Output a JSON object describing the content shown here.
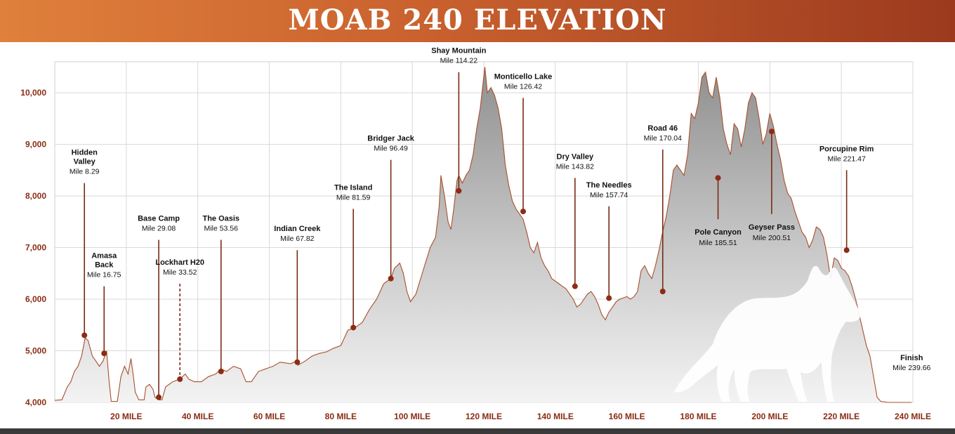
{
  "title": "MOAB 240 ELEVATION",
  "chart_data": {
    "type": "area",
    "title": "MOAB 240 ELEVATION",
    "xlim": [
      0,
      240
    ],
    "ylim": [
      4000,
      10600
    ],
    "grid": true,
    "x_ticks": [
      20,
      40,
      60,
      80,
      100,
      120,
      140,
      160,
      180,
      200,
      220,
      240
    ],
    "x_tick_labels": [
      "20 MILE",
      "40 MILE",
      "60 MILE",
      "80 MILE",
      "100 MILE",
      "120 MILE",
      "140 MILE",
      "160 MILE",
      "180 MILE",
      "200 MILE",
      "220 MILE",
      "240 MILE"
    ],
    "y_ticks": [
      4000,
      5000,
      6000,
      7000,
      8000,
      9000,
      10000
    ],
    "y_tick_labels": [
      "4,000",
      "5,000",
      "6,000",
      "7,000",
      "8,000",
      "9,000",
      "10,000"
    ],
    "series": [
      {
        "values": [
          [
            0,
            4040
          ],
          [
            2,
            4050
          ],
          [
            3.5,
            4300
          ],
          [
            4.5,
            4400
          ],
          [
            5.5,
            4600
          ],
          [
            6.5,
            4700
          ],
          [
            7.5,
            4900
          ],
          [
            8.5,
            5250
          ],
          [
            9.3,
            5200
          ],
          [
            10.5,
            4900
          ],
          [
            12.5,
            4700
          ],
          [
            13.5,
            4800
          ],
          [
            14.5,
            5000
          ],
          [
            15.2,
            4400
          ],
          [
            15.8,
            4020
          ],
          [
            17.5,
            4020
          ],
          [
            18.5,
            4500
          ],
          [
            19.5,
            4700
          ],
          [
            20.5,
            4550
          ],
          [
            21.3,
            4850
          ],
          [
            22,
            4500
          ],
          [
            22.5,
            4200
          ],
          [
            23.5,
            4050
          ],
          [
            25,
            4050
          ],
          [
            25.5,
            4300
          ],
          [
            26.5,
            4350
          ],
          [
            27.5,
            4250
          ],
          [
            28,
            4100
          ],
          [
            29,
            4050
          ],
          [
            30,
            4050
          ],
          [
            31,
            4300
          ],
          [
            33,
            4400
          ],
          [
            35,
            4450
          ],
          [
            36.5,
            4550
          ],
          [
            37.5,
            4450
          ],
          [
            39,
            4400
          ],
          [
            41,
            4400
          ],
          [
            43,
            4500
          ],
          [
            45,
            4550
          ],
          [
            46.5,
            4650
          ],
          [
            48,
            4600
          ],
          [
            50,
            4700
          ],
          [
            52,
            4650
          ],
          [
            53.5,
            4400
          ],
          [
            55,
            4400
          ],
          [
            57,
            4600
          ],
          [
            59,
            4650
          ],
          [
            61,
            4700
          ],
          [
            63,
            4780
          ],
          [
            66,
            4750
          ],
          [
            67.5,
            4800
          ],
          [
            68,
            4720
          ],
          [
            70,
            4800
          ],
          [
            72,
            4900
          ],
          [
            74,
            4950
          ],
          [
            76,
            4980
          ],
          [
            78,
            5050
          ],
          [
            80,
            5100
          ],
          [
            82,
            5400
          ],
          [
            84,
            5450
          ],
          [
            86,
            5550
          ],
          [
            88,
            5800
          ],
          [
            90,
            6000
          ],
          [
            92,
            6300
          ],
          [
            94,
            6400
          ],
          [
            95,
            6600
          ],
          [
            96.5,
            6700
          ],
          [
            97.5,
            6500
          ],
          [
            98.5,
            6150
          ],
          [
            99.5,
            5950
          ],
          [
            101,
            6100
          ],
          [
            103,
            6550
          ],
          [
            105,
            7000
          ],
          [
            106.5,
            7200
          ],
          [
            107.5,
            7800
          ],
          [
            108,
            8400
          ],
          [
            109,
            8000
          ],
          [
            110,
            7500
          ],
          [
            110.8,
            7350
          ],
          [
            111.5,
            7700
          ],
          [
            112.5,
            8300
          ],
          [
            113,
            8400
          ],
          [
            114,
            8250
          ],
          [
            115,
            8400
          ],
          [
            116,
            8500
          ],
          [
            117,
            8800
          ],
          [
            118,
            9300
          ],
          [
            119,
            9700
          ],
          [
            119.8,
            10200
          ],
          [
            120.3,
            10500
          ],
          [
            121,
            10000
          ],
          [
            122,
            10100
          ],
          [
            123,
            9950
          ],
          [
            124,
            9700
          ],
          [
            125,
            9300
          ],
          [
            126,
            8600
          ],
          [
            127,
            8200
          ],
          [
            128,
            7900
          ],
          [
            129,
            7750
          ],
          [
            130,
            7650
          ],
          [
            131,
            7550
          ],
          [
            132,
            7300
          ],
          [
            133,
            7000
          ],
          [
            134,
            6900
          ],
          [
            135,
            7100
          ],
          [
            136,
            6800
          ],
          [
            137,
            6650
          ],
          [
            138,
            6550
          ],
          [
            139,
            6400
          ],
          [
            140,
            6350
          ],
          [
            141,
            6300
          ],
          [
            142,
            6250
          ],
          [
            143,
            6200
          ],
          [
            144,
            6100
          ],
          [
            145,
            6000
          ],
          [
            146,
            5850
          ],
          [
            147,
            5900
          ],
          [
            148,
            6000
          ],
          [
            149,
            6100
          ],
          [
            150,
            6150
          ],
          [
            151,
            6050
          ],
          [
            152,
            5900
          ],
          [
            153,
            5700
          ],
          [
            154,
            5600
          ],
          [
            155,
            5750
          ],
          [
            156,
            5850
          ],
          [
            157,
            5950
          ],
          [
            158,
            6000
          ],
          [
            160,
            6050
          ],
          [
            161,
            6000
          ],
          [
            162,
            6050
          ],
          [
            163,
            6150
          ],
          [
            164,
            6550
          ],
          [
            165,
            6650
          ],
          [
            166,
            6500
          ],
          [
            167,
            6400
          ],
          [
            168,
            6650
          ],
          [
            169,
            6950
          ],
          [
            170,
            7300
          ],
          [
            171,
            7600
          ],
          [
            172,
            8000
          ],
          [
            173,
            8500
          ],
          [
            174,
            8600
          ],
          [
            175,
            8500
          ],
          [
            176,
            8400
          ],
          [
            177,
            8800
          ],
          [
            178,
            9600
          ],
          [
            179,
            9500
          ],
          [
            180,
            9800
          ],
          [
            181,
            10300
          ],
          [
            182,
            10400
          ],
          [
            183,
            10000
          ],
          [
            184,
            9900
          ],
          [
            185,
            10300
          ],
          [
            186,
            9900
          ],
          [
            187,
            9300
          ],
          [
            188,
            9000
          ],
          [
            189,
            8800
          ],
          [
            190,
            9400
          ],
          [
            191,
            9300
          ],
          [
            192,
            8950
          ],
          [
            193,
            9300
          ],
          [
            194,
            9800
          ],
          [
            195,
            10000
          ],
          [
            196,
            9900
          ],
          [
            197,
            9500
          ],
          [
            198,
            9000
          ],
          [
            199,
            9200
          ],
          [
            200,
            9600
          ],
          [
            201,
            9350
          ],
          [
            202,
            9000
          ],
          [
            203,
            8700
          ],
          [
            204,
            8300
          ],
          [
            205,
            8050
          ],
          [
            206,
            7950
          ],
          [
            207,
            7700
          ],
          [
            208,
            7500
          ],
          [
            209,
            7300
          ],
          [
            210,
            7200
          ],
          [
            211,
            7000
          ],
          [
            212,
            7150
          ],
          [
            213,
            7400
          ],
          [
            214,
            7350
          ],
          [
            215,
            7200
          ],
          [
            216,
            6850
          ],
          [
            217,
            6400
          ],
          [
            218,
            6800
          ],
          [
            219,
            6750
          ],
          [
            220,
            6600
          ],
          [
            221,
            6550
          ],
          [
            222,
            6450
          ],
          [
            223,
            6250
          ],
          [
            224,
            6000
          ],
          [
            225,
            5700
          ],
          [
            226,
            5400
          ],
          [
            227,
            5100
          ],
          [
            228,
            4900
          ],
          [
            229,
            4500
          ],
          [
            230,
            4100
          ],
          [
            231,
            4020
          ],
          [
            233,
            4000
          ],
          [
            236,
            4000
          ],
          [
            239.66,
            4000
          ]
        ]
      }
    ],
    "annotations": [
      {
        "name_lines": [
          "Hidden",
          "Valley"
        ],
        "mile_text": "Mile 8.29",
        "mile": 8.29,
        "elev": 5300,
        "label_elev": 8250,
        "dashed": false
      },
      {
        "name_lines": [
          "Amasa",
          "Back"
        ],
        "mile_text": "Mile 16.75",
        "mile": 13.8,
        "elev": 4950,
        "label_elev": 6250,
        "dashed": false
      },
      {
        "name_lines": [
          "Base Camp"
        ],
        "mile_text": "Mile 29.08",
        "mile": 29.08,
        "elev": 4100,
        "label_elev": 7150,
        "dashed": false
      },
      {
        "name_lines": [
          "Lockhart H20"
        ],
        "mile_text": "Mile 33.52",
        "mile": 35.0,
        "elev": 4450,
        "label_elev": 6300,
        "dashed": true
      },
      {
        "name_lines": [
          "The Oasis"
        ],
        "mile_text": "Mile 53.56",
        "mile": 46.5,
        "elev": 4600,
        "label_elev": 7150,
        "dashed": false
      },
      {
        "name_lines": [
          "Indian Creek"
        ],
        "mile_text": "Mile 67.82",
        "mile": 67.82,
        "elev": 4780,
        "label_elev": 6950,
        "dashed": false
      },
      {
        "name_lines": [
          "The Island"
        ],
        "mile_text": "Mile 81.59",
        "mile": 83.5,
        "elev": 5450,
        "label_elev": 7750,
        "dashed": false
      },
      {
        "name_lines": [
          "Bridger Jack"
        ],
        "mile_text": "Mile 96.49",
        "mile": 94.0,
        "elev": 6400,
        "label_elev": 8700,
        "dashed": false
      },
      {
        "name_lines": [
          "Shay Mountain"
        ],
        "mile_text": "Mile 114.22",
        "mile": 113.0,
        "elev": 8100,
        "label_elev": 10400,
        "dashed": false
      },
      {
        "name_lines": [
          "Monticello Lake"
        ],
        "mile_text": "Mile 126.42",
        "mile": 131.0,
        "elev": 7700,
        "label_elev": 9900,
        "dashed": false
      },
      {
        "name_lines": [
          "Dry Valley"
        ],
        "mile_text": "Mile 143.82",
        "mile": 145.5,
        "elev": 6250,
        "label_elev": 8350,
        "dashed": false
      },
      {
        "name_lines": [
          "The Needles"
        ],
        "mile_text": "Mile 157.74",
        "mile": 155.0,
        "elev": 6020,
        "label_elev": 7800,
        "dashed": false
      },
      {
        "name_lines": [
          "Road 46"
        ],
        "mile_text": "Mile 170.04",
        "mile": 170.04,
        "elev": 6150,
        "label_elev": 8900,
        "dashed": false
      },
      {
        "name_lines": [
          "Pole Canyon"
        ],
        "mile_text": "Mile 185.51",
        "mile": 185.51,
        "elev": 8350,
        "label_elev": 7250,
        "dashed": false,
        "below": true
      },
      {
        "name_lines": [
          "Geyser Pass"
        ],
        "mile_text": "Mile 200.51",
        "mile": 200.51,
        "elev": 9250,
        "label_elev": 7350,
        "dashed": false,
        "below": true
      },
      {
        "name_lines": [
          "Porcupine Rim"
        ],
        "mile_text": "Mile 221.47",
        "mile": 221.47,
        "elev": 6950,
        "label_elev": 8500,
        "dashed": false
      },
      {
        "name_lines": [
          "Finish"
        ],
        "mile_text": "Mile 239.66",
        "mile": 239.66,
        "elev": 4000,
        "label_elev": 4450,
        "dashed": false,
        "no_stem": true
      }
    ]
  },
  "colors": {
    "banner_start": "#e0803c",
    "banner_end": "#9c3a1e",
    "accent": "#8b2c14",
    "area_top": "#8f8f8f",
    "area_bottom": "#f2f2f2",
    "grid": "#d9d9d9"
  }
}
